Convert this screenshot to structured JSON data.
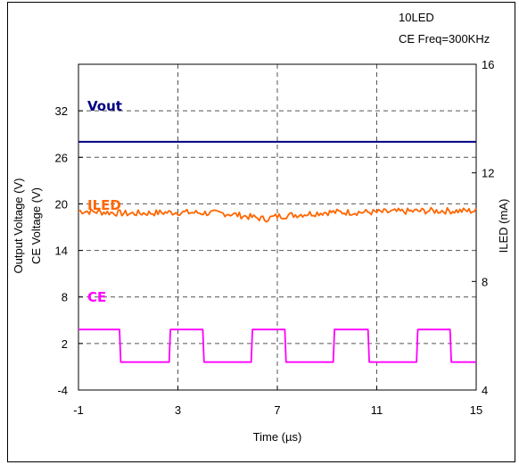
{
  "chart_data": {
    "type": "line",
    "annotations": [
      "10LED",
      "CE Freq=300KHz"
    ],
    "xlabel": "Time (µs)",
    "ylabel_left": [
      "Output Voltage (V)",
      "CE Voltage (V)"
    ],
    "ylabel_right": "ILED (mA)",
    "xlim": [
      -1,
      15
    ],
    "xticks": [
      -1,
      3,
      7,
      11,
      15
    ],
    "ylim_left": [
      -4,
      38
    ],
    "yticks_left": [
      -4,
      2,
      8,
      14,
      20,
      26,
      32
    ],
    "ylim_right": [
      4,
      16
    ],
    "yticks_right": [
      4,
      8,
      12,
      16
    ],
    "grid": true,
    "series": [
      {
        "name": "Vout",
        "axis": "left",
        "color": "#000080",
        "x": [
          -1,
          15
        ],
        "y": [
          28,
          28
        ]
      },
      {
        "name": "ILED",
        "axis": "right",
        "color": "#ff6600",
        "noise": 0.12,
        "x": [
          -1,
          1,
          3,
          5,
          6.5,
          7,
          9,
          11,
          13,
          15
        ],
        "y": [
          10.6,
          10.5,
          10.55,
          10.5,
          10.3,
          10.4,
          10.55,
          10.55,
          10.6,
          10.6
        ]
      },
      {
        "name": "CE",
        "axis": "left",
        "color": "#ff00ff",
        "x": [
          -1,
          0.65,
          0.7,
          2.65,
          2.7,
          4.0,
          4.05,
          5.95,
          6.0,
          7.3,
          7.35,
          9.25,
          9.3,
          10.65,
          10.7,
          12.6,
          12.65,
          13.95,
          14.0,
          15
        ],
        "y": [
          3.8,
          3.8,
          -0.4,
          -0.4,
          3.8,
          3.8,
          -0.4,
          -0.4,
          3.8,
          3.8,
          -0.4,
          -0.4,
          3.8,
          3.8,
          -0.4,
          -0.4,
          3.8,
          3.8,
          -0.4,
          -0.4
        ]
      }
    ]
  }
}
